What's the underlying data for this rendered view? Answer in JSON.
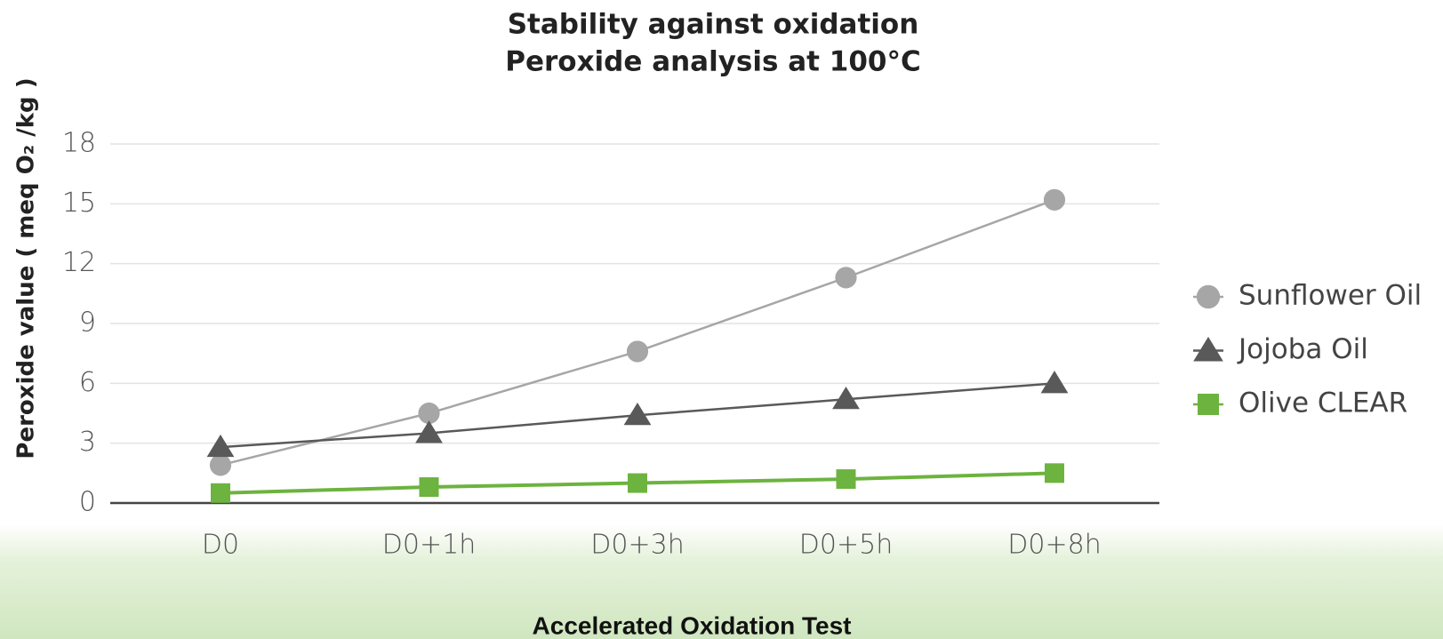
{
  "chart_data": {
    "type": "line",
    "title": "Stability against oxidation",
    "subtitle": "Peroxide analysis at 100°C",
    "y_label": "Peroxide value ( meq O₂ /kg )",
    "caption": "Accelerated Oxidation Test",
    "categories": [
      "D0",
      "D0+1h",
      "D0+3h",
      "D0+5h",
      "D0+8h"
    ],
    "series": [
      {
        "name": "Sunflower Oil",
        "color": "#a6a6a6",
        "marker": "circle",
        "values": [
          1.9,
          4.5,
          7.6,
          11.3,
          15.2
        ]
      },
      {
        "name": "Jojoba Oil",
        "color": "#595959",
        "marker": "triangle",
        "values": [
          2.8,
          3.5,
          4.4,
          5.2,
          6.0
        ]
      },
      {
        "name": "Olive CLEAR",
        "color": "#6db33f",
        "marker": "square",
        "values": [
          0.5,
          0.8,
          1.0,
          1.2,
          1.5
        ]
      }
    ],
    "ylim": [
      0,
      18
    ],
    "yticks": [
      0,
      3,
      6,
      9,
      12,
      15,
      18
    ],
    "grid": true,
    "legend": "right"
  }
}
